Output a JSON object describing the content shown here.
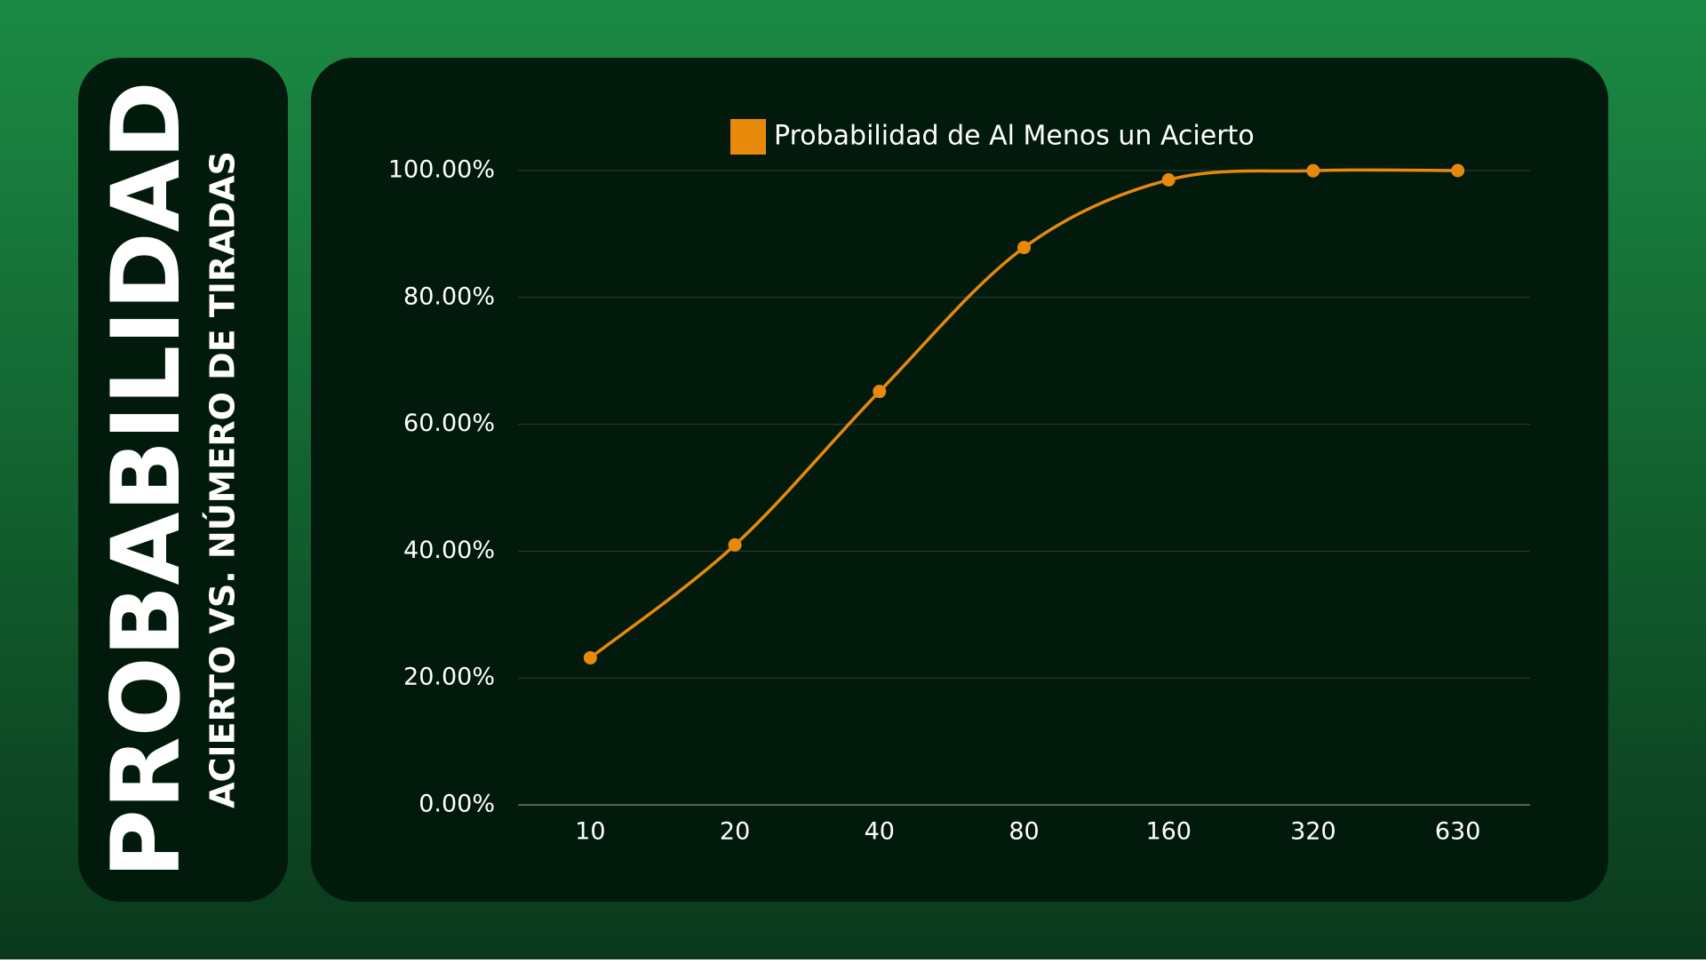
{
  "chart_data": {
    "type": "line",
    "title": "PROBABILIDAD",
    "subtitle": "ACIERTO VS. NÚMERO DE TIRADAS",
    "categories": [
      "10",
      "20",
      "40",
      "80",
      "160",
      "320",
      "630"
    ],
    "series": [
      {
        "name": "Probabilidad de Al Menos un Acierto",
        "color": "#e8890c",
        "values": [
          23.18,
          40.98,
          65.17,
          87.87,
          98.53,
          99.98,
          100
        ]
      }
    ],
    "ylim": [
      0,
      100
    ],
    "yticks": [
      {
        "value": 0,
        "label": "0.00%"
      },
      {
        "value": 20,
        "label": "20.00%"
      },
      {
        "value": 40,
        "label": "40.00%"
      },
      {
        "value": 60,
        "label": "60.00%"
      },
      {
        "value": 80,
        "label": "80.00%"
      },
      {
        "value": 100,
        "label": "100.00%"
      }
    ],
    "grid": true,
    "smooth": true,
    "legend": "top"
  }
}
